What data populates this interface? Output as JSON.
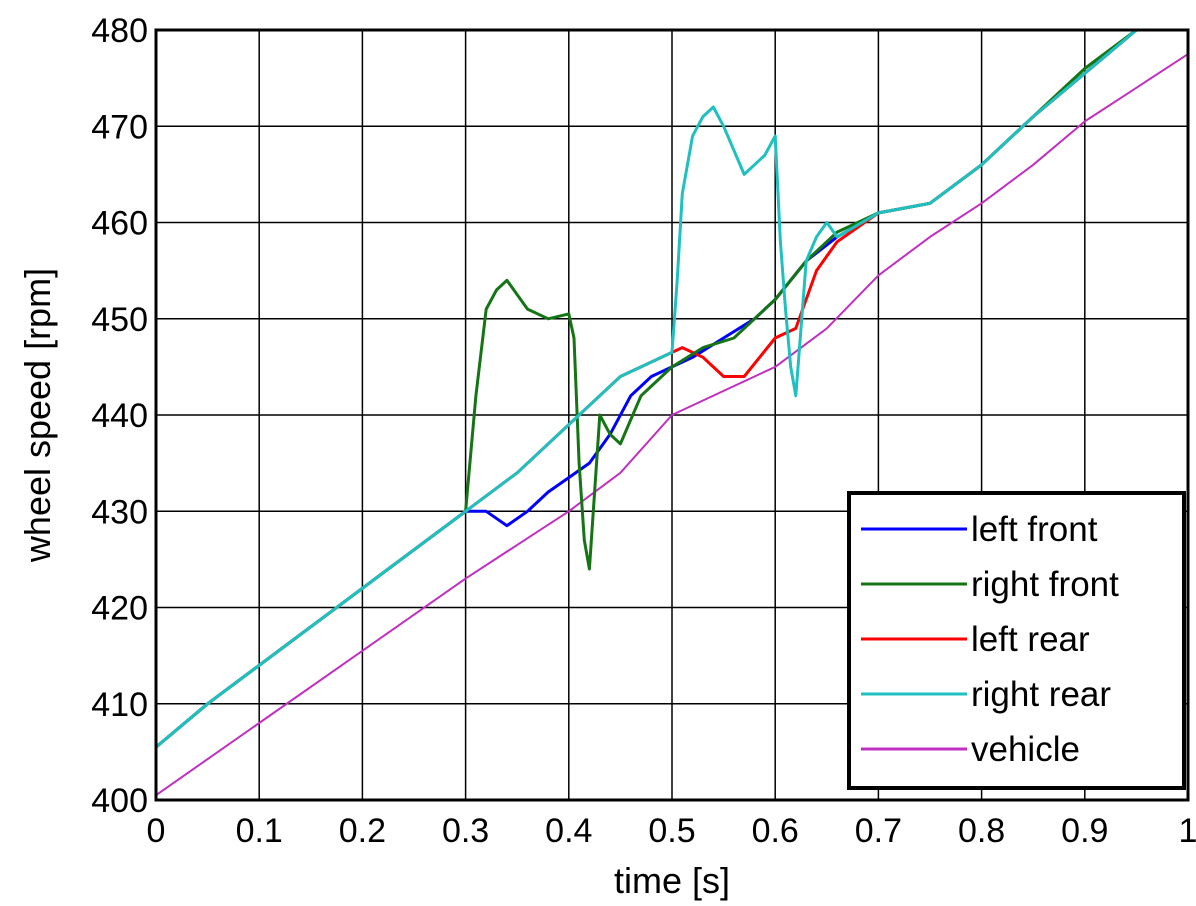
{
  "chart_data": {
    "type": "line",
    "title": "",
    "xlabel": "time [s]",
    "ylabel": "wheel speed [rpm]",
    "xlim": [
      0,
      1
    ],
    "ylim": [
      400,
      480
    ],
    "grid": true,
    "legend_position": "bottom-right",
    "x_ticks": [
      "0",
      "0.1",
      "0.2",
      "0.3",
      "0.4",
      "0.5",
      "0.6",
      "0.7",
      "0.8",
      "0.9",
      "1"
    ],
    "y_ticks": [
      "400",
      "410",
      "420",
      "430",
      "440",
      "450",
      "460",
      "470",
      "480"
    ],
    "series": [
      {
        "name": "left front",
        "color": "#0000ff",
        "x": [
          0,
          0.05,
          0.1,
          0.15,
          0.2,
          0.25,
          0.3,
          0.32,
          0.34,
          0.36,
          0.38,
          0.4,
          0.42,
          0.44,
          0.46,
          0.48,
          0.5,
          0.52,
          0.55,
          0.58,
          0.6,
          0.63,
          0.66,
          0.7,
          0.75,
          0.8,
          0.85,
          0.9,
          0.95
        ],
        "y": [
          405.5,
          410,
          414,
          418,
          422,
          426,
          430,
          430,
          428.5,
          430,
          432,
          433.5,
          435,
          438,
          442,
          444,
          445,
          446,
          448,
          450,
          452,
          456,
          458.5,
          461,
          462,
          466,
          471,
          475.5,
          480
        ]
      },
      {
        "name": "right front",
        "color": "#157515",
        "x": [
          0,
          0.05,
          0.1,
          0.15,
          0.2,
          0.25,
          0.3,
          0.31,
          0.32,
          0.33,
          0.34,
          0.36,
          0.38,
          0.4,
          0.405,
          0.41,
          0.415,
          0.42,
          0.43,
          0.44,
          0.45,
          0.47,
          0.5,
          0.53,
          0.56,
          0.6,
          0.63,
          0.66,
          0.7,
          0.75,
          0.8,
          0.85,
          0.9,
          0.95
        ],
        "y": [
          405.5,
          410,
          414,
          418,
          422,
          426,
          430,
          442,
          451,
          453,
          454,
          451,
          450,
          450.5,
          448,
          435,
          427,
          424,
          440,
          438,
          437,
          442,
          445,
          447,
          448,
          452,
          456,
          459,
          461,
          462,
          466,
          471,
          476,
          480
        ]
      },
      {
        "name": "left rear",
        "color": "#ff0000",
        "x": [
          0,
          0.05,
          0.1,
          0.15,
          0.2,
          0.25,
          0.3,
          0.35,
          0.4,
          0.45,
          0.5,
          0.51,
          0.53,
          0.55,
          0.57,
          0.6,
          0.62,
          0.64,
          0.66,
          0.7,
          0.75,
          0.8,
          0.85,
          0.9,
          0.95
        ],
        "y": [
          405.5,
          410,
          414,
          418,
          422,
          426,
          430,
          434,
          439,
          444,
          446.5,
          447,
          446,
          444,
          444,
          448,
          449,
          455,
          458,
          461,
          462,
          466,
          471,
          475.5,
          480
        ]
      },
      {
        "name": "right rear",
        "color": "#1fc0c0",
        "x": [
          0,
          0.05,
          0.1,
          0.15,
          0.2,
          0.25,
          0.3,
          0.35,
          0.4,
          0.45,
          0.5,
          0.505,
          0.51,
          0.52,
          0.53,
          0.54,
          0.55,
          0.57,
          0.59,
          0.6,
          0.605,
          0.61,
          0.615,
          0.62,
          0.625,
          0.63,
          0.64,
          0.65,
          0.66,
          0.7,
          0.75,
          0.8,
          0.85,
          0.9,
          0.95
        ],
        "y": [
          405.5,
          410,
          414,
          418,
          422,
          426,
          430,
          434,
          439,
          444,
          446.5,
          454,
          463,
          469,
          471,
          472,
          470,
          465,
          467,
          469,
          458,
          451,
          445,
          442,
          449,
          456,
          458.5,
          460,
          458.5,
          461,
          462,
          466,
          471,
          475.5,
          480
        ]
      },
      {
        "name": "vehicle",
        "color": "#c030c0",
        "x": [
          0,
          0.1,
          0.2,
          0.3,
          0.35,
          0.4,
          0.45,
          0.5,
          0.55,
          0.6,
          0.65,
          0.7,
          0.75,
          0.8,
          0.85,
          0.9,
          0.95,
          1
        ],
        "y": [
          400.5,
          408,
          415.5,
          423,
          426.5,
          430,
          434,
          440,
          442.5,
          445,
          449,
          454.5,
          458.5,
          462,
          466,
          470.5,
          474,
          477.5
        ]
      }
    ]
  }
}
